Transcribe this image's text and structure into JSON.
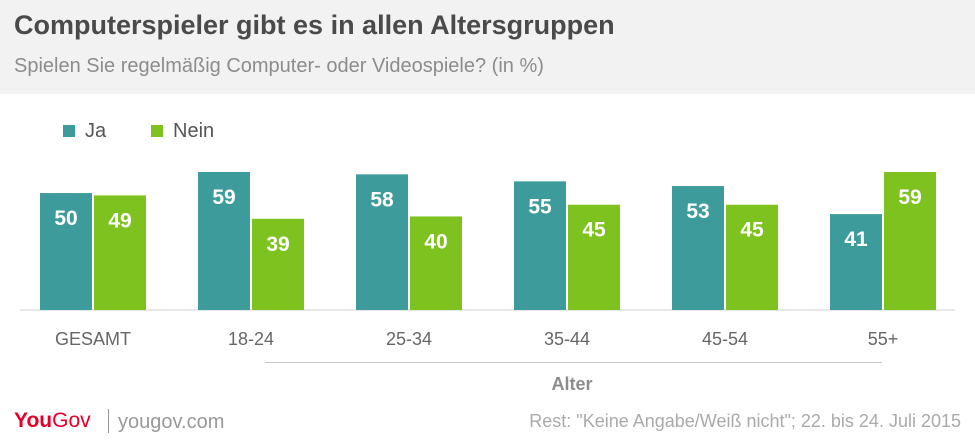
{
  "header": {
    "title": "Computerspieler gibt es in allen Altersgruppen",
    "subtitle": "Spielen Sie regelmäßig Computer- oder Videospiele? (in %)"
  },
  "colors": {
    "ja": "#3e9b9b",
    "nein": "#7dc21e",
    "header_bg": "#f2f2f2"
  },
  "footer": {
    "logo": {
      "you": "You",
      "gov": "Gov"
    },
    "site": "yougov.com",
    "note": "Rest: \"Keine Angabe/Weiß nicht\"; 22. bis 24. Juli 2015"
  },
  "chart_data": {
    "type": "bar",
    "title": "Computerspieler gibt es in allen Altersgruppen",
    "subtitle": "Spielen Sie regelmäßig Computer- oder Videospiele? (in %)",
    "xlabel": "Alter",
    "ylabel": "",
    "categories": [
      "GESAMT",
      "18-24",
      "25-34",
      "35-44",
      "45-54",
      "55+"
    ],
    "series": [
      {
        "name": "Ja",
        "values": [
          50,
          59,
          58,
          55,
          53,
          41
        ]
      },
      {
        "name": "Nein",
        "values": [
          49,
          39,
          40,
          45,
          45,
          59
        ]
      }
    ],
    "ylim": [
      0,
      60
    ],
    "grid": false,
    "legend": "top-left",
    "data_labels": true
  }
}
